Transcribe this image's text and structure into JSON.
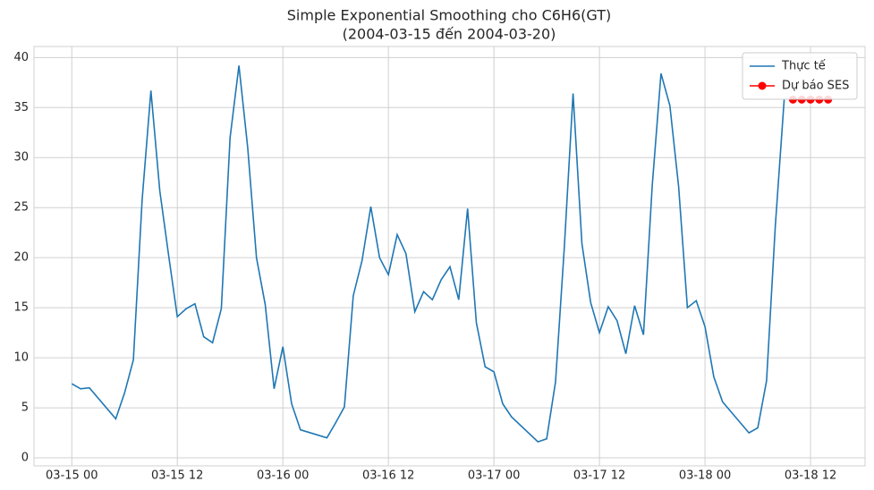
{
  "chart_data": {
    "type": "line",
    "title": "Simple Exponential Smoothing cho C6H6(GT)",
    "subtitle": "(2004-03-15 đến 2004-03-20)",
    "grid": true,
    "legend": "upper right",
    "xlim": [
      "2004-03-14 19:42",
      "2004-03-18 18:12"
    ],
    "ylim": [
      -0.8,
      41.1
    ],
    "yticks": [
      0,
      5,
      10,
      15,
      20,
      25,
      30,
      35,
      40
    ],
    "xticks": [
      {
        "value": "2004-03-15 00:00",
        "label": "03-15 00"
      },
      {
        "value": "2004-03-15 12:00",
        "label": "03-15 12"
      },
      {
        "value": "2004-03-16 00:00",
        "label": "03-16 00"
      },
      {
        "value": "2004-03-16 12:00",
        "label": "03-16 12"
      },
      {
        "value": "2004-03-17 00:00",
        "label": "03-17 00"
      },
      {
        "value": "2004-03-17 12:00",
        "label": "03-17 12"
      },
      {
        "value": "2004-03-18 00:00",
        "label": "03-18 00"
      },
      {
        "value": "2004-03-18 12:00",
        "label": "03-18 12"
      }
    ],
    "series": [
      {
        "name": "Thực tế",
        "color": "#1f77b4",
        "marker": false,
        "x": [
          "2004-03-15 00:00",
          "2004-03-15 01:00",
          "2004-03-15 02:00",
          "2004-03-15 05:00",
          "2004-03-15 06:00",
          "2004-03-15 07:00",
          "2004-03-15 08:00",
          "2004-03-15 09:00",
          "2004-03-15 10:00",
          "2004-03-15 11:00",
          "2004-03-15 12:00",
          "2004-03-15 13:00",
          "2004-03-15 14:00",
          "2004-03-15 15:00",
          "2004-03-15 16:00",
          "2004-03-15 17:00",
          "2004-03-15 18:00",
          "2004-03-15 19:00",
          "2004-03-15 20:00",
          "2004-03-15 21:00",
          "2004-03-15 22:00",
          "2004-03-15 23:00",
          "2004-03-16 00:00",
          "2004-03-16 01:00",
          "2004-03-16 02:00",
          "2004-03-16 05:00",
          "2004-03-16 06:00",
          "2004-03-16 07:00",
          "2004-03-16 08:00",
          "2004-03-16 09:00",
          "2004-03-16 10:00",
          "2004-03-16 11:00",
          "2004-03-16 12:00",
          "2004-03-16 13:00",
          "2004-03-16 14:00",
          "2004-03-16 15:00",
          "2004-03-16 16:00",
          "2004-03-16 17:00",
          "2004-03-16 18:00",
          "2004-03-16 19:00",
          "2004-03-16 20:00",
          "2004-03-16 21:00",
          "2004-03-16 22:00",
          "2004-03-16 23:00",
          "2004-03-17 00:00",
          "2004-03-17 01:00",
          "2004-03-17 02:00",
          "2004-03-17 05:00",
          "2004-03-17 06:00",
          "2004-03-17 07:00",
          "2004-03-17 08:00",
          "2004-03-17 09:00",
          "2004-03-17 10:00",
          "2004-03-17 11:00",
          "2004-03-17 12:00",
          "2004-03-17 13:00",
          "2004-03-17 14:00",
          "2004-03-17 15:00",
          "2004-03-17 16:00",
          "2004-03-17 17:00",
          "2004-03-17 18:00",
          "2004-03-17 19:00",
          "2004-03-17 20:00",
          "2004-03-17 21:00",
          "2004-03-17 22:00",
          "2004-03-17 23:00",
          "2004-03-18 00:00",
          "2004-03-18 01:00",
          "2004-03-18 02:00",
          "2004-03-18 05:00",
          "2004-03-18 06:00",
          "2004-03-18 07:00",
          "2004-03-18 08:00",
          "2004-03-18 09:00"
        ],
        "values": [
          7.4,
          6.9,
          7.0,
          3.9,
          6.5,
          9.8,
          25.8,
          36.7,
          26.7,
          20.3,
          14.1,
          14.9,
          15.4,
          12.1,
          11.5,
          14.9,
          32.0,
          39.2,
          31.0,
          20.0,
          15.3,
          6.9,
          11.1,
          5.4,
          2.8,
          2.0,
          3.5,
          5.1,
          16.2,
          19.7,
          25.1,
          20.0,
          18.3,
          22.3,
          20.4,
          14.6,
          16.6,
          15.8,
          17.8,
          19.1,
          15.8,
          24.9,
          13.5,
          9.1,
          8.6,
          5.4,
          4.1,
          1.6,
          1.9,
          7.6,
          21.0,
          36.4,
          21.4,
          15.5,
          12.5,
          15.1,
          13.7,
          10.4,
          15.2,
          12.3,
          27.2,
          38.4,
          35.2,
          27.1,
          15.0,
          15.7,
          13.1,
          8.1,
          5.6,
          2.5,
          3.0,
          7.7,
          23.2,
          35.8
        ]
      },
      {
        "name": "Dự báo SES",
        "color": "#ff0000",
        "marker": true,
        "x": [
          "2004-03-18 10:00",
          "2004-03-18 11:00",
          "2004-03-18 12:00",
          "2004-03-18 13:00",
          "2004-03-18 14:00"
        ],
        "values": [
          35.8,
          35.8,
          35.8,
          35.8,
          35.8
        ]
      }
    ]
  }
}
